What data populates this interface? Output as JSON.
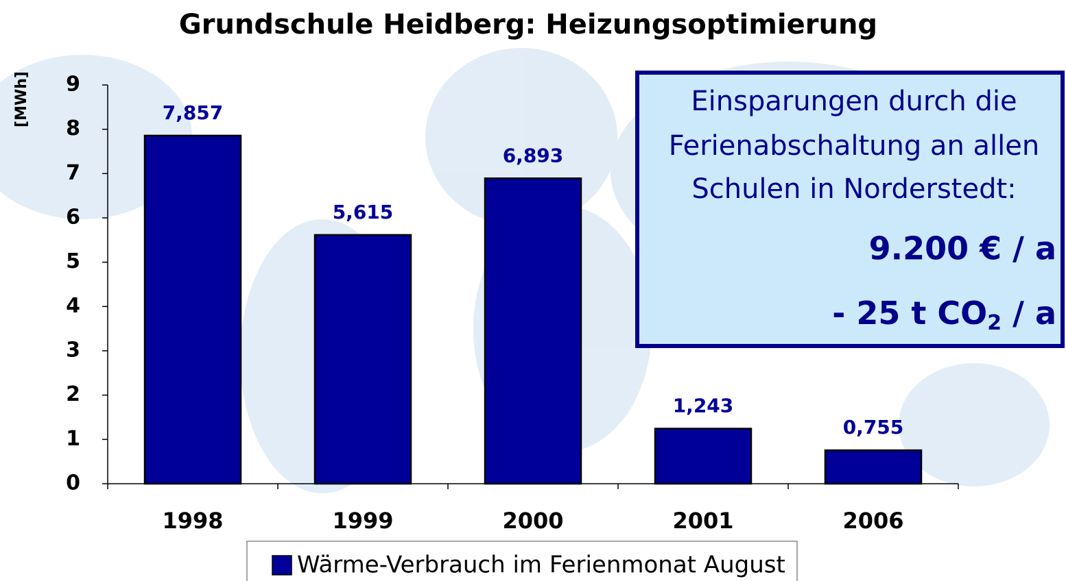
{
  "chart_data": {
    "type": "bar",
    "title": "Grundschule Heidberg: Heizungsoptimierung",
    "y_label": "[MWh]",
    "categories": [
      "1998",
      "1999",
      "2000",
      "2001",
      "2006"
    ],
    "series": [
      {
        "name": "Wärme-Verbrauch im Ferienmonat August",
        "color": "#000099",
        "values": [
          7.857,
          5.615,
          6.893,
          1.243,
          0.755
        ],
        "value_labels": [
          "7,857",
          "5,615",
          "6,893",
          "1,243",
          "0,755"
        ]
      }
    ],
    "ylim": [
      0,
      9
    ],
    "yticks": [
      0,
      1,
      2,
      3,
      4,
      5,
      6,
      7,
      8,
      9
    ],
    "grid": false,
    "annotation": {
      "lines": [
        "Einsparungen durch die",
        "Ferienabschaltung an allen",
        "Schulen in Norderstedt:"
      ],
      "savings": "9.200 € / a",
      "co2": [
        "- 25 t CO",
        "2",
        " / a"
      ]
    }
  }
}
